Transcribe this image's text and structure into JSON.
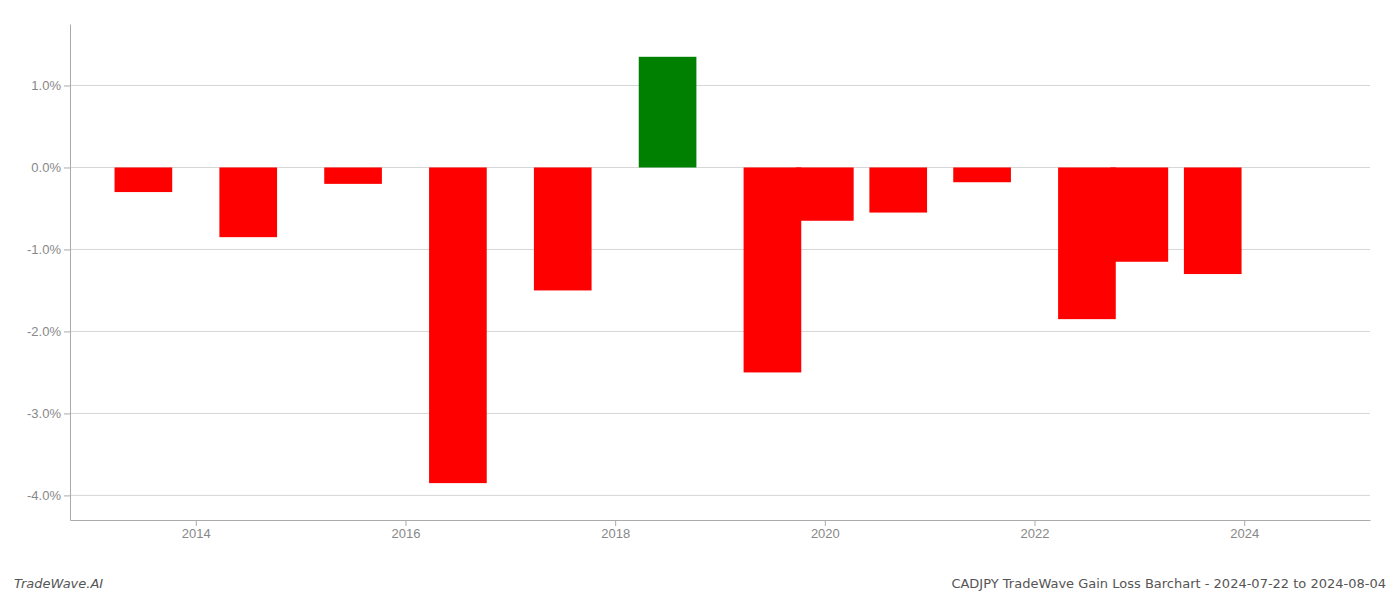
{
  "chart_data": {
    "type": "bar",
    "x": [
      2013.5,
      2014.5,
      2015.5,
      2016.5,
      2017.5,
      2018.5,
      2019.5,
      2020.0,
      2020.7,
      2021.5,
      2022.5,
      2023.0,
      2023.7
    ],
    "values": [
      -0.3,
      -0.85,
      -0.2,
      -3.85,
      -1.5,
      1.35,
      -2.5,
      -0.65,
      -0.55,
      -0.18,
      -1.85,
      -1.15,
      -1.3
    ],
    "colors": [
      "#ff0000",
      "#ff0000",
      "#ff0000",
      "#ff0000",
      "#ff0000",
      "#008000",
      "#ff0000",
      "#ff0000",
      "#ff0000",
      "#ff0000",
      "#ff0000",
      "#ff0000",
      "#ff0000"
    ],
    "xlim": [
      2012.8,
      2025.2
    ],
    "xticks": [
      2014,
      2016,
      2018,
      2020,
      2022,
      2024
    ],
    "ylim": [
      -4.3,
      1.75
    ],
    "yticks": [
      {
        "value": -4.0,
        "label": "-4.0%"
      },
      {
        "value": -3.0,
        "label": "-3.0%"
      },
      {
        "value": -2.0,
        "label": "-2.0%"
      },
      {
        "value": -1.0,
        "label": "-1.0%"
      },
      {
        "value": 0.0,
        "label": "0.0%"
      },
      {
        "value": 1.0,
        "label": "1.0%"
      }
    ],
    "grid": true,
    "annotations": [
      "TradeWave.AI",
      "CADJPY TradeWave Gain Loss Barchart - 2024-07-22 to 2024-08-04"
    ]
  }
}
